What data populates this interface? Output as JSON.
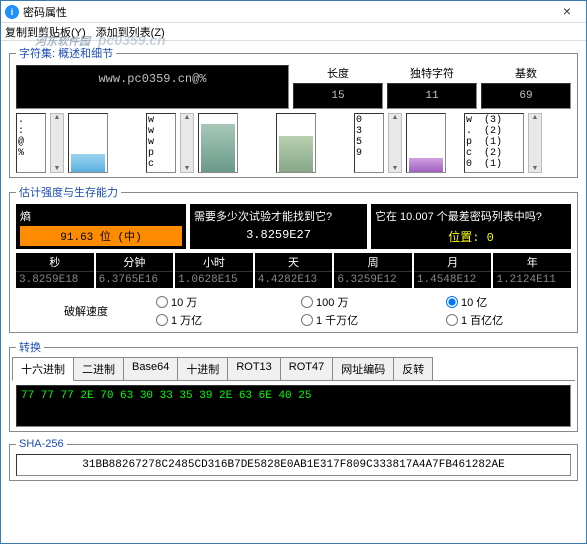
{
  "title": "密码属性",
  "menu": {
    "copy": "复制到剪贴板(Y)",
    "add": "添加到列表(Z)"
  },
  "watermark": {
    "main": "河东软件园",
    "sub": "pc0359.cn"
  },
  "section1": {
    "legend": "字符集: 概述和细节",
    "password": "www.pc0359.cn@%",
    "len_lbl": "长度",
    "len": "15",
    "uniq_lbl": "独特字符",
    "uniq": "11",
    "base_lbl": "基数",
    "base": "69",
    "sym1": ".\n:\n@\n%",
    "sym2": "w\nw\nw\np\nc",
    "sym3": "0\n3\n5\n9",
    "sym4": "w  (3)\n.  (2)\np  (1)\nc  (2)\n0  (1)",
    "bar1": {
      "h": 18,
      "bg": "linear-gradient(to top,#5ab0e0,#9cd4f0)"
    },
    "bar2": {
      "h": 48,
      "bg": "linear-gradient(to top,#6a9a8a,#a8c8b8)"
    },
    "bar3": {
      "h": 36,
      "bg": "linear-gradient(to top,#88a888,#b8d0b0)"
    },
    "bar4": {
      "h": 14,
      "bg": "linear-gradient(to top,#a060c0,#d0a0e0)"
    }
  },
  "section2": {
    "legend": "估计强度与生存能力",
    "entropy_lbl": "熵",
    "entropy": "91.63 位 (中)",
    "trials_lbl": "需要多少次试验才能找到它?",
    "trials": "3.8259E27",
    "worst_lbl": "它在 10.007 个最差密码列表中吗?",
    "worst": "位置: 0",
    "times": [
      {
        "h": "秒",
        "v": "3.8259E18"
      },
      {
        "h": "分钟",
        "v": "6.3765E16"
      },
      {
        "h": "小时",
        "v": "1.0628E15"
      },
      {
        "h": "天",
        "v": "4.4282E13"
      },
      {
        "h": "周",
        "v": "6.3259E12"
      },
      {
        "h": "月",
        "v": "1.4548E12"
      },
      {
        "h": "年",
        "v": "1.2124E11"
      }
    ],
    "speed_lbl": "破解速度",
    "radios": [
      "10 万",
      "100 万",
      "10 亿",
      "1 万亿",
      "1 千万亿",
      "1 百亿亿"
    ],
    "selected": 2
  },
  "section3": {
    "legend": "转换",
    "tabs": [
      "十六进制",
      "二进制",
      "Base64",
      "十进制",
      "ROT13",
      "ROT47",
      "网址编码",
      "反转"
    ],
    "active": 0,
    "hex": "77 77 77 2E 70 63 30 33 35 39 2E 63 6E 40 25"
  },
  "section4": {
    "legend": "SHA-256",
    "val": "31BB88267278C2485CD316B7DE5828E0AB1E317F809C333817A4A7FB461282AE"
  }
}
